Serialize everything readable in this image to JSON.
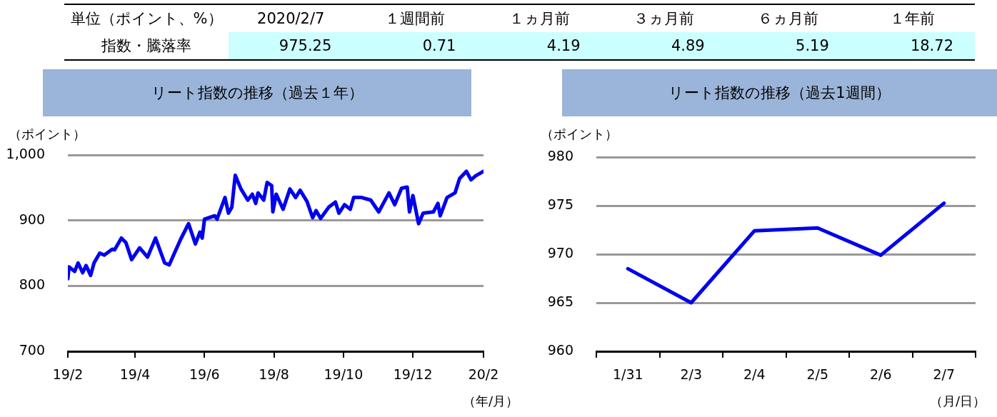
{
  "chart_data": [
    {
      "type": "other",
      "categories": [
        "2020/2/7",
        "１週間前",
        "１ヵ月前",
        "３ヵ月前",
        "６ヵ月前",
        "１年前"
      ],
      "values": [
        975.25,
        0.71,
        4.19,
        4.89,
        5.19,
        18.72
      ],
      "data_labels": true,
      "annotations": [
        "単位（ポイント、%）",
        "指数・騰落率"
      ]
    },
    {
      "type": "line",
      "title": "リート指数の推移（過去１年）",
      "ylabel": "（ポイント）",
      "xlabel": "（年/月）",
      "marker": "none",
      "grid": "y",
      "x": [
        "2019-02-07",
        "2019-02-08",
        "2019-02-13",
        "2019-02-16",
        "2019-02-20",
        "2019-02-23",
        "2019-02-27",
        "2019-03-02",
        "2019-03-07",
        "2019-03-11",
        "2019-03-18",
        "2019-03-20",
        "2019-03-26",
        "2019-03-30",
        "2019-04-04",
        "2019-04-11",
        "2019-04-18",
        "2019-04-25",
        "2019-05-03",
        "2019-05-07",
        "2019-05-17",
        "2019-05-24",
        "2019-05-30",
        "2019-06-03",
        "2019-06-05",
        "2019-06-07",
        "2019-06-16",
        "2019-06-18",
        "2019-06-25",
        "2019-06-28",
        "2019-07-01",
        "2019-07-04",
        "2019-07-09",
        "2019-07-15",
        "2019-07-19",
        "2019-07-22",
        "2019-07-24",
        "2019-07-29",
        "2019-08-01",
        "2019-08-05",
        "2019-08-06",
        "2019-08-09",
        "2019-08-15",
        "2019-08-21",
        "2019-08-26",
        "2019-08-30",
        "2019-09-05",
        "2019-09-10",
        "2019-09-13",
        "2019-09-17",
        "2019-09-24",
        "2019-09-30",
        "2019-10-03",
        "2019-10-08",
        "2019-10-13",
        "2019-10-16",
        "2019-10-23",
        "2019-10-31",
        "2019-11-07",
        "2019-11-11",
        "2019-11-16",
        "2019-11-21",
        "2019-11-27",
        "2019-12-02",
        "2019-12-04",
        "2019-12-07",
        "2019-12-12",
        "2019-12-16",
        "2019-12-25",
        "2019-12-29",
        "2019-12-31",
        "2020-01-06",
        "2020-01-13",
        "2020-01-17",
        "2020-01-23",
        "2020-01-27",
        "2020-01-31",
        "2020-02-07"
      ],
      "series": [
        {
          "color": "#0000ee",
          "values": [
            811,
            829,
            822,
            835,
            820,
            831,
            816,
            835,
            850,
            847,
            856,
            855,
            873,
            866,
            840,
            858,
            844,
            873,
            835,
            832,
            871,
            895,
            864,
            882,
            873,
            902,
            907,
            902,
            935,
            911,
            920,
            969,
            948,
            931,
            940,
            926,
            942,
            931,
            958,
            953,
            913,
            940,
            917,
            948,
            935,
            946,
            929,
            904,
            915,
            903,
            920,
            928,
            911,
            924,
            917,
            935,
            935,
            931,
            913,
            926,
            942,
            924,
            949,
            951,
            913,
            938,
            895,
            911,
            913,
            926,
            907,
            935,
            942,
            964,
            975,
            962,
            968,
            975
          ]
        }
      ],
      "xlim": [
        "2019-02-07",
        "2020-02-07"
      ],
      "xticks": [
        {
          "value": "2019-02-07",
          "label": "19/2"
        },
        {
          "value": "2019-04-07",
          "label": "19/4"
        },
        {
          "value": "2019-06-07",
          "label": "19/6"
        },
        {
          "value": "2019-08-07",
          "label": "19/8"
        },
        {
          "value": "2019-10-07",
          "label": "19/10"
        },
        {
          "value": "2019-12-07",
          "label": "19/12"
        },
        {
          "value": "2020-02-07",
          "label": "20/2"
        }
      ],
      "ylim": [
        700,
        1000
      ],
      "yticks": [
        700,
        800,
        900,
        {
          "value": 1000,
          "label": "1,000"
        }
      ]
    },
    {
      "type": "line",
      "title": "リート指数の推移（過去1週間）",
      "ylabel": "（ポイント）",
      "xlabel": "（月/日）",
      "marker": "none",
      "grid": "y",
      "categories": [
        "1/31",
        "2/3",
        "2/4",
        "2/5",
        "2/6",
        "2/7"
      ],
      "series": [
        {
          "color": "#0000ee",
          "values": [
            968.5,
            965.0,
            972.4,
            972.7,
            969.9,
            975.25
          ]
        }
      ],
      "ylim": [
        960,
        980
      ],
      "yticks": [
        960,
        965,
        970,
        975,
        980
      ]
    }
  ]
}
